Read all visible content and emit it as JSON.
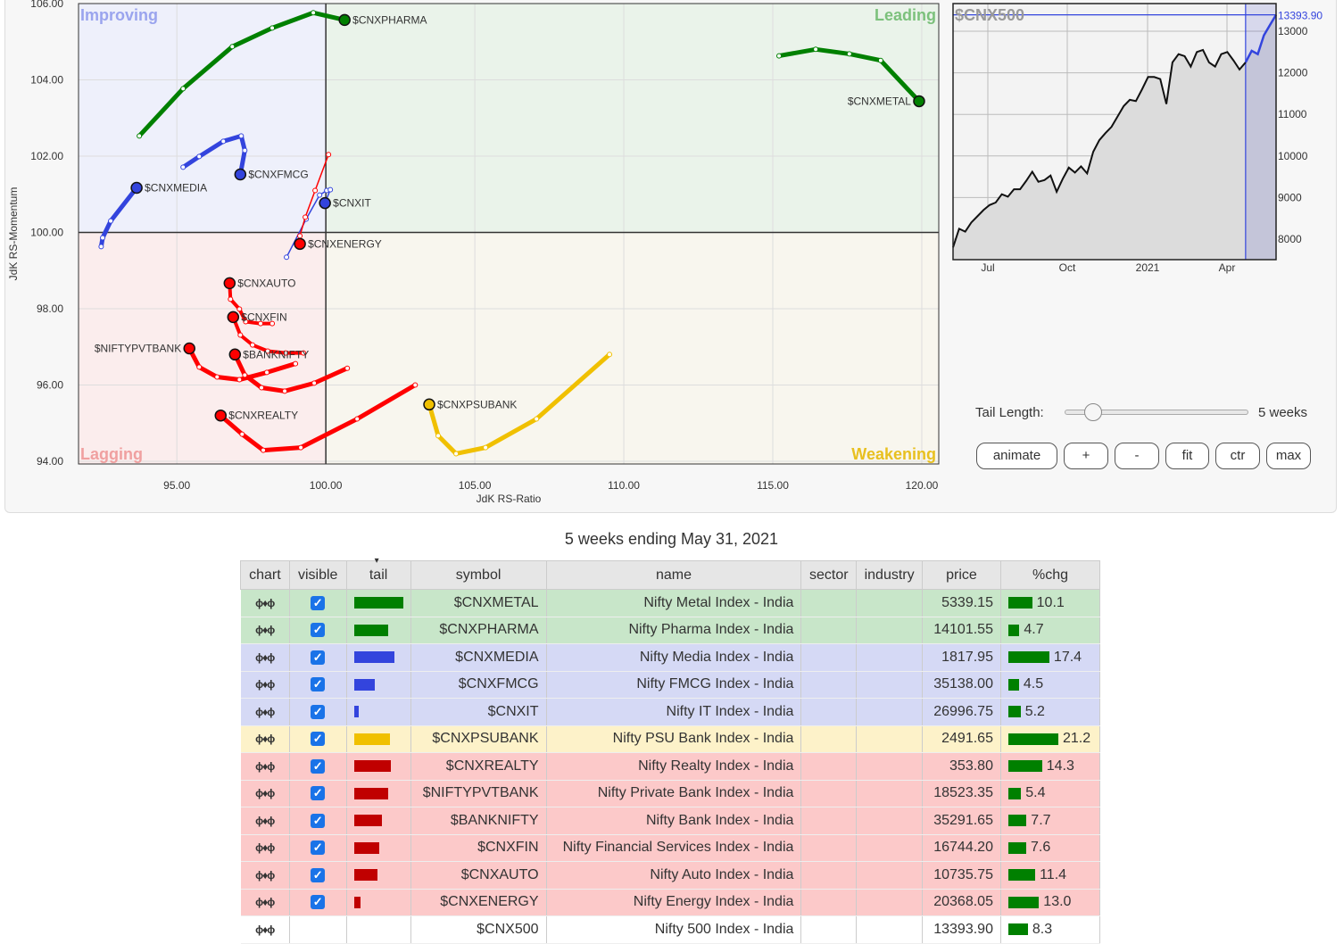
{
  "chart_data": [
    {
      "type": "scatter",
      "subtype": "relative-rotation-graph",
      "xlabel": "JdK RS-Ratio",
      "ylabel": "JdK RS-Momentum",
      "xlim": [
        91.7,
        120.57
      ],
      "ylim": [
        93.93,
        106
      ],
      "xticks": [
        95,
        100,
        105,
        110,
        115,
        120
      ],
      "xtick_labels": [
        "95.00",
        "100.00",
        "105.00",
        "110.00",
        "115.00",
        "120.00"
      ],
      "yticks": [
        94,
        96,
        98,
        100,
        102,
        104,
        106
      ],
      "ytick_labels": [
        "94.00",
        "96.00",
        "98.00",
        "100.00",
        "102.00",
        "104.00",
        "106.00"
      ],
      "grid": true,
      "quadrants": {
        "improving": "Improving",
        "leading": "Leading",
        "lagging": "Lagging",
        "weakening": "Weakening"
      },
      "series": [
        {
          "name": "$CNXPHARMA",
          "color": "#008000",
          "width": 5,
          "x": [
            93.74,
            95.21,
            96.86,
            98.2,
            99.58,
            100.63
          ],
          "y": [
            102.53,
            103.77,
            104.87,
            105.36,
            105.76,
            105.57
          ]
        },
        {
          "name": "$CNXMETAL",
          "color": "#008000",
          "width": 5,
          "x": [
            115.21,
            116.44,
            117.57,
            118.62,
            119.91
          ],
          "y": [
            104.63,
            104.8,
            104.68,
            104.51,
            103.44
          ]
        },
        {
          "name": "$CNXMEDIA",
          "color": "#3344dd",
          "width": 5,
          "x": [
            92.46,
            92.51,
            92.78,
            93.65
          ],
          "y": [
            99.63,
            99.86,
            100.3,
            101.17
          ]
        },
        {
          "name": "$CNXFMCG",
          "color": "#3344dd",
          "width": 5,
          "x": [
            95.21,
            95.75,
            96.56,
            97.16,
            97.28,
            97.13
          ],
          "y": [
            101.71,
            101.99,
            102.39,
            102.53,
            102.15,
            101.52
          ]
        },
        {
          "name": "$CNXIT",
          "color": "#3344dd",
          "width": 1.5,
          "x": [
            98.68,
            99.34,
            99.79,
            100.03,
            100.15,
            99.97
          ],
          "y": [
            99.35,
            100.35,
            100.98,
            101.1,
            101.12,
            100.77
          ]
        },
        {
          "name": "$CNXENERGY",
          "color": "#ff0000",
          "width": 1.5,
          "x": [
            100.09,
            99.64,
            99.31,
            99.13,
            99.13
          ],
          "y": [
            102.04,
            101.1,
            100.4,
            99.91,
            99.7
          ]
        },
        {
          "name": "$CNXAUTO",
          "color": "#ff0000",
          "width": 4,
          "x": [
            98.2,
            97.81,
            97.31,
            97.1,
            96.8,
            96.77
          ],
          "y": [
            97.61,
            97.61,
            97.66,
            97.99,
            98.25,
            98.67
          ]
        },
        {
          "name": "$CNXFIN",
          "color": "#ff0000",
          "width": 4,
          "x": [
            99.25,
            98.65,
            98.05,
            97.54,
            97.13,
            96.89
          ],
          "y": [
            96.84,
            96.84,
            96.89,
            97.05,
            97.31,
            97.78
          ]
        },
        {
          "name": "$NIFTYPVTBANK",
          "color": "#ff0000",
          "width": 5,
          "x": [
            98.98,
            98.02,
            97.1,
            96.35,
            95.75,
            95.42
          ],
          "y": [
            96.56,
            96.33,
            96.14,
            96.21,
            96.47,
            96.96
          ]
        },
        {
          "name": "$BANKNIFTY",
          "color": "#ff0000",
          "width": 5,
          "x": [
            100.72,
            99.61,
            98.62,
            97.84,
            97.28,
            96.95
          ],
          "y": [
            96.44,
            96.05,
            95.84,
            95.93,
            96.26,
            96.8
          ]
        },
        {
          "name": "$CNXREALTY",
          "color": "#ff0000",
          "width": 5,
          "x": [
            103.0,
            101.05,
            99.16,
            97.9,
            97.19,
            96.47
          ],
          "y": [
            96.0,
            95.11,
            94.36,
            94.29,
            94.71,
            95.2
          ]
        },
        {
          "name": "$CNXPSUBANK",
          "color": "#f0c000",
          "width": 5,
          "x": [
            109.52,
            107.07,
            105.36,
            104.37,
            103.77,
            103.47
          ],
          "y": [
            96.8,
            95.11,
            94.36,
            94.2,
            94.67,
            95.49
          ]
        }
      ]
    },
    {
      "type": "area",
      "title": "$CNX500",
      "ylim": [
        7500,
        13700
      ],
      "yticks": [
        8000,
        9000,
        10000,
        11000,
        12000,
        13000
      ],
      "ytick_labels": [
        "8000",
        "9000",
        "10000",
        "11000",
        "12000",
        "13000"
      ],
      "xtick_labels": [
        "Jul",
        "Oct",
        "2021",
        "Apr"
      ],
      "last_value": "13393.90",
      "highlight_weeks": 5,
      "values": [
        7800,
        8250,
        8180,
        8400,
        8550,
        8700,
        8820,
        8880,
        9080,
        9020,
        9200,
        9200,
        9400,
        9620,
        9380,
        9420,
        9530,
        9140,
        9450,
        9720,
        9600,
        9750,
        9580,
        10100,
        10380,
        10550,
        10700,
        10950,
        11200,
        11350,
        11320,
        11600,
        11900,
        11900,
        11850,
        11250,
        12250,
        12450,
        12400,
        12150,
        12500,
        12550,
        12250,
        12150,
        12450,
        12500,
        12300,
        12080,
        12250,
        12530,
        12450,
        12900,
        13150,
        13393.9
      ]
    }
  ],
  "controls": {
    "tail_label": "Tail Length:",
    "tail_value": "5 weeks",
    "tail_weeks": 5,
    "buttons": [
      "animate",
      "+",
      "-",
      "fit",
      "ctr",
      "max"
    ]
  },
  "caption": "5 weeks ending May 31, 2021",
  "colors": {
    "green_row": "#c8e6c9",
    "blue_row": "#d5d9f5",
    "yellow_row": "#fdf2c9",
    "red_row": "#fcc9c9"
  },
  "table": {
    "headers": [
      "chart",
      "visible",
      "tail",
      "symbol",
      "name",
      "sector",
      "industry",
      "price",
      "%chg"
    ],
    "rows": [
      {
        "symbol": "$CNXMETAL",
        "name": "Nifty Metal Index - India",
        "price": "5339.15",
        "chg": "10.1",
        "tail": 55,
        "color": "#008000",
        "row": "#c8e6c9",
        "visible": true
      },
      {
        "symbol": "$CNXPHARMA",
        "name": "Nifty Pharma Index - India",
        "price": "14101.55",
        "chg": "4.7",
        "tail": 38,
        "color": "#008000",
        "row": "#c8e6c9",
        "visible": true
      },
      {
        "symbol": "$CNXMEDIA",
        "name": "Nifty Media Index - India",
        "price": "1817.95",
        "chg": "17.4",
        "tail": 45,
        "color": "#3344dd",
        "row": "#d5d9f5",
        "visible": true
      },
      {
        "symbol": "$CNXFMCG",
        "name": "Nifty FMCG Index - India",
        "price": "35138.00",
        "chg": "4.5",
        "tail": 23,
        "color": "#3344dd",
        "row": "#d5d9f5",
        "visible": true
      },
      {
        "symbol": "$CNXIT",
        "name": "Nifty IT Index - India",
        "price": "26996.75",
        "chg": "5.2",
        "tail": 5,
        "color": "#3344dd",
        "row": "#d5d9f5",
        "visible": true
      },
      {
        "symbol": "$CNXPSUBANK",
        "name": "Nifty PSU Bank Index - India",
        "price": "2491.65",
        "chg": "21.2",
        "tail": 40,
        "color": "#f0c000",
        "row": "#fdf2c9",
        "visible": true
      },
      {
        "symbol": "$CNXREALTY",
        "name": "Nifty Realty Index - India",
        "price": "353.80",
        "chg": "14.3",
        "tail": 41,
        "color": "#c00000",
        "row": "#fcc9c9",
        "visible": true
      },
      {
        "symbol": "$NIFTYPVTBANK",
        "name": "Nifty Private Bank Index - India",
        "price": "18523.35",
        "chg": "5.4",
        "tail": 38,
        "color": "#c00000",
        "row": "#fcc9c9",
        "visible": true
      },
      {
        "symbol": "$BANKNIFTY",
        "name": "Nifty Bank Index - India",
        "price": "35291.65",
        "chg": "7.7",
        "tail": 31,
        "color": "#c00000",
        "row": "#fcc9c9",
        "visible": true
      },
      {
        "symbol": "$CNXFIN",
        "name": "Nifty Financial Services Index - India",
        "price": "16744.20",
        "chg": "7.6",
        "tail": 28,
        "color": "#c00000",
        "row": "#fcc9c9",
        "visible": true
      },
      {
        "symbol": "$CNXAUTO",
        "name": "Nifty Auto Index - India",
        "price": "10735.75",
        "chg": "11.4",
        "tail": 26,
        "color": "#c00000",
        "row": "#fcc9c9",
        "visible": true
      },
      {
        "symbol": "$CNXENERGY",
        "name": "Nifty Energy Index - India",
        "price": "20368.05",
        "chg": "13.0",
        "tail": 7,
        "color": "#c00000",
        "row": "#fcc9c9",
        "visible": true
      },
      {
        "symbol": "$CNX500",
        "name": "Nifty 500 Index - India",
        "price": "13393.90",
        "chg": "8.3",
        "tail": 0,
        "color": "#c00000",
        "row": "#ffffff",
        "visible": false
      }
    ]
  }
}
